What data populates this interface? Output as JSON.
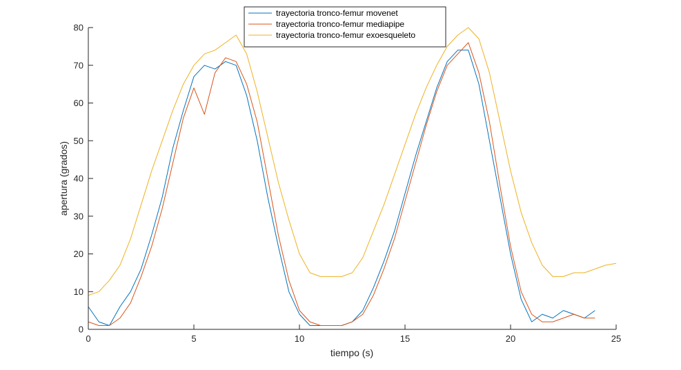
{
  "chart_data": {
    "type": "line",
    "title": "",
    "xlabel": "tiempo (s)",
    "ylabel": "apertura (grados)",
    "xlim": [
      0,
      25
    ],
    "ylim": [
      0,
      80
    ],
    "xticks": [
      0,
      5,
      10,
      15,
      20,
      25
    ],
    "yticks": [
      0,
      10,
      20,
      30,
      40,
      50,
      60,
      70,
      80
    ],
    "grid": false,
    "legend_position": "top-center",
    "series": [
      {
        "name": "trayectoria tronco-femur movenet",
        "color": "#0072BD",
        "x": [
          0,
          0.5,
          1,
          1.5,
          2,
          2.5,
          3,
          3.5,
          4,
          4.5,
          5,
          5.5,
          6,
          6.5,
          7,
          7.5,
          8,
          8.5,
          9,
          9.5,
          10,
          10.5,
          11,
          11.5,
          12,
          12.5,
          13,
          13.5,
          14,
          14.5,
          15,
          15.5,
          16,
          16.5,
          17,
          17.5,
          18,
          18.5,
          19,
          19.5,
          20,
          20.5,
          21,
          21.5,
          22,
          22.5,
          23,
          23.5,
          24
        ],
        "y": [
          6,
          2,
          1,
          6,
          10,
          16,
          25,
          35,
          48,
          58,
          67,
          70,
          69,
          71,
          70,
          62,
          50,
          35,
          22,
          10,
          4,
          1,
          1,
          1,
          1,
          2,
          5,
          11,
          18,
          26,
          36,
          46,
          55,
          64,
          71,
          74,
          74,
          65,
          50,
          35,
          20,
          8,
          2,
          4,
          3,
          5,
          4,
          3,
          5
        ]
      },
      {
        "name": "trayectoria tronco-femur mediapipe",
        "color": "#D95319",
        "x": [
          0,
          0.5,
          1,
          1.5,
          2,
          2.5,
          3,
          3.5,
          4,
          4.5,
          5,
          5.5,
          6,
          6.5,
          7,
          7.5,
          8,
          8.5,
          9,
          9.5,
          10,
          10.5,
          11,
          11.5,
          12,
          12.5,
          13,
          13.5,
          14,
          14.5,
          15,
          15.5,
          16,
          16.5,
          17,
          17.5,
          18,
          18.5,
          19,
          19.5,
          20,
          20.5,
          21,
          21.5,
          22,
          22.5,
          23,
          23.5,
          24
        ],
        "y": [
          2,
          1,
          1,
          3,
          7,
          14,
          22,
          32,
          44,
          56,
          64,
          57,
          68,
          72,
          71,
          65,
          55,
          40,
          25,
          13,
          5,
          2,
          1,
          1,
          1,
          2,
          4,
          9,
          16,
          24,
          34,
          44,
          54,
          63,
          70,
          73,
          76,
          68,
          55,
          38,
          22,
          10,
          4,
          2,
          2,
          3,
          4,
          3,
          3
        ]
      },
      {
        "name": "trayectoria tronco-femur exoesqueleto",
        "color": "#EDB120",
        "x": [
          0,
          0.5,
          1,
          1.5,
          2,
          2.5,
          3,
          3.5,
          4,
          4.5,
          5,
          5.5,
          6,
          6.5,
          7,
          7.5,
          8,
          8.5,
          9,
          9.5,
          10,
          10.5,
          11,
          11.5,
          12,
          12.5,
          13,
          13.5,
          14,
          14.5,
          15,
          15.5,
          16,
          16.5,
          17,
          17.5,
          18,
          18.5,
          19,
          19.5,
          20,
          20.5,
          21,
          21.5,
          22,
          22.5,
          23,
          23.5,
          24,
          24.5,
          25
        ],
        "y": [
          9,
          10,
          13,
          17,
          24,
          33,
          42,
          50,
          58,
          65,
          70,
          73,
          74,
          76,
          78,
          73,
          63,
          51,
          39,
          29,
          20,
          15,
          14,
          14,
          14,
          15,
          19,
          26,
          33,
          41,
          49,
          57,
          64,
          70,
          75,
          78,
          80,
          77,
          68,
          55,
          42,
          31,
          23,
          17,
          14,
          14,
          15,
          15,
          16,
          17,
          17.5
        ]
      }
    ]
  }
}
